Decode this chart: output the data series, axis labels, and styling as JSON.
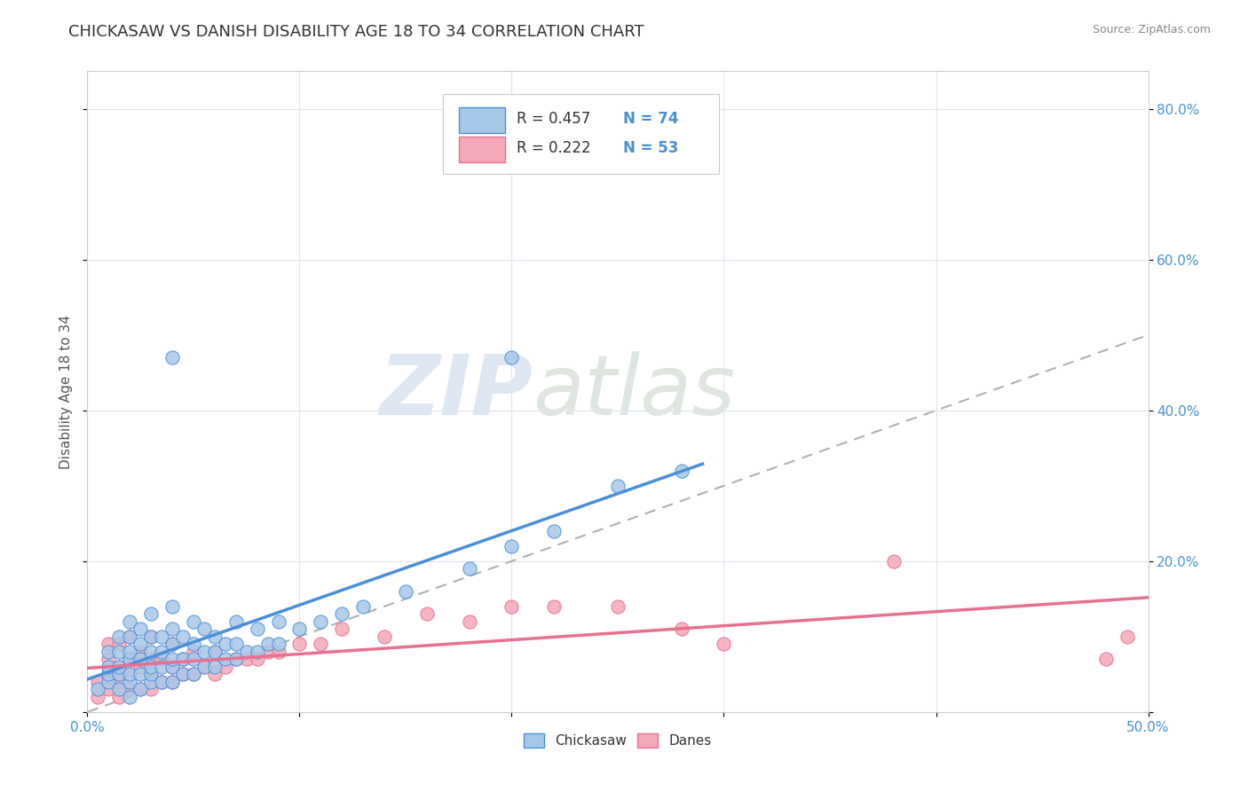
{
  "title": "CHICKASAW VS DANISH DISABILITY AGE 18 TO 34 CORRELATION CHART",
  "source": "Source: ZipAtlas.com",
  "ylabel": "Disability Age 18 to 34",
  "xlim": [
    0.0,
    0.5
  ],
  "ylim": [
    0.0,
    0.85
  ],
  "xticks": [
    0.0,
    0.1,
    0.2,
    0.3,
    0.4,
    0.5
  ],
  "xticklabels": [
    "0.0%",
    "",
    "",
    "",
    "",
    "50.0%"
  ],
  "yticks": [
    0.0,
    0.2,
    0.4,
    0.6,
    0.8
  ],
  "yticklabels": [
    "",
    "20.0%",
    "40.0%",
    "60.0%",
    "80.0%"
  ],
  "chickasaw_color": "#a8c8e8",
  "danes_color": "#f4a8b8",
  "chickasaw_line_color": "#4a90d9",
  "danes_line_color": "#e87090",
  "dashed_line_color": "#b0b0b0",
  "legend_r1": "R = 0.457",
  "legend_n1": "N = 74",
  "legend_r2": "R = 0.222",
  "legend_n2": "N = 53",
  "watermark_zip": "ZIP",
  "watermark_atlas": "atlas",
  "chickasaw_scatter_x": [
    0.005,
    0.01,
    0.01,
    0.01,
    0.01,
    0.015,
    0.015,
    0.015,
    0.015,
    0.015,
    0.02,
    0.02,
    0.02,
    0.02,
    0.02,
    0.02,
    0.02,
    0.025,
    0.025,
    0.025,
    0.025,
    0.025,
    0.03,
    0.03,
    0.03,
    0.03,
    0.03,
    0.03,
    0.035,
    0.035,
    0.035,
    0.035,
    0.04,
    0.04,
    0.04,
    0.04,
    0.04,
    0.04,
    0.045,
    0.045,
    0.045,
    0.05,
    0.05,
    0.05,
    0.05,
    0.055,
    0.055,
    0.055,
    0.06,
    0.06,
    0.06,
    0.065,
    0.065,
    0.07,
    0.07,
    0.07,
    0.075,
    0.08,
    0.08,
    0.085,
    0.09,
    0.09,
    0.1,
    0.11,
    0.12,
    0.13,
    0.15,
    0.18,
    0.2,
    0.22,
    0.25,
    0.28,
    0.04,
    0.2
  ],
  "chickasaw_scatter_y": [
    0.03,
    0.04,
    0.05,
    0.06,
    0.08,
    0.03,
    0.05,
    0.06,
    0.08,
    0.1,
    0.02,
    0.04,
    0.05,
    0.07,
    0.08,
    0.1,
    0.12,
    0.03,
    0.05,
    0.07,
    0.09,
    0.11,
    0.04,
    0.05,
    0.06,
    0.08,
    0.1,
    0.13,
    0.04,
    0.06,
    0.08,
    0.1,
    0.04,
    0.06,
    0.07,
    0.09,
    0.11,
    0.14,
    0.05,
    0.07,
    0.1,
    0.05,
    0.07,
    0.09,
    0.12,
    0.06,
    0.08,
    0.11,
    0.06,
    0.08,
    0.1,
    0.07,
    0.09,
    0.07,
    0.09,
    0.12,
    0.08,
    0.08,
    0.11,
    0.09,
    0.09,
    0.12,
    0.11,
    0.12,
    0.13,
    0.14,
    0.16,
    0.19,
    0.22,
    0.24,
    0.3,
    0.32,
    0.47,
    0.47
  ],
  "danes_scatter_x": [
    0.005,
    0.005,
    0.01,
    0.01,
    0.01,
    0.01,
    0.015,
    0.015,
    0.015,
    0.015,
    0.02,
    0.02,
    0.02,
    0.02,
    0.025,
    0.025,
    0.025,
    0.03,
    0.03,
    0.03,
    0.03,
    0.035,
    0.035,
    0.04,
    0.04,
    0.04,
    0.045,
    0.045,
    0.05,
    0.05,
    0.055,
    0.06,
    0.06,
    0.065,
    0.07,
    0.075,
    0.08,
    0.085,
    0.09,
    0.1,
    0.11,
    0.12,
    0.14,
    0.16,
    0.18,
    0.2,
    0.22,
    0.25,
    0.28,
    0.3,
    0.38,
    0.48,
    0.49
  ],
  "danes_scatter_y": [
    0.02,
    0.04,
    0.03,
    0.05,
    0.07,
    0.09,
    0.02,
    0.04,
    0.06,
    0.09,
    0.03,
    0.05,
    0.07,
    0.1,
    0.03,
    0.06,
    0.08,
    0.03,
    0.05,
    0.07,
    0.1,
    0.04,
    0.07,
    0.04,
    0.06,
    0.09,
    0.05,
    0.07,
    0.05,
    0.08,
    0.06,
    0.05,
    0.08,
    0.06,
    0.07,
    0.07,
    0.07,
    0.08,
    0.08,
    0.09,
    0.09,
    0.11,
    0.1,
    0.13,
    0.12,
    0.14,
    0.14,
    0.14,
    0.11,
    0.09,
    0.2,
    0.07,
    0.1
  ],
  "background_color": "#ffffff",
  "grid_color": "#dde5f0",
  "title_color": "#333333",
  "axis_label_color": "#555555",
  "tick_label_color": "#4a90d9",
  "watermark_color": "#d0dce8",
  "title_fontsize": 13,
  "ylabel_fontsize": 11,
  "tick_fontsize": 11,
  "legend_fontsize": 12,
  "chickasaw_line_x": [
    0.0,
    0.29
  ],
  "danes_line_x": [
    0.0,
    0.5
  ],
  "dashed_line_x": [
    0.0,
    0.5
  ],
  "dashed_line_y": [
    0.0,
    0.5
  ]
}
